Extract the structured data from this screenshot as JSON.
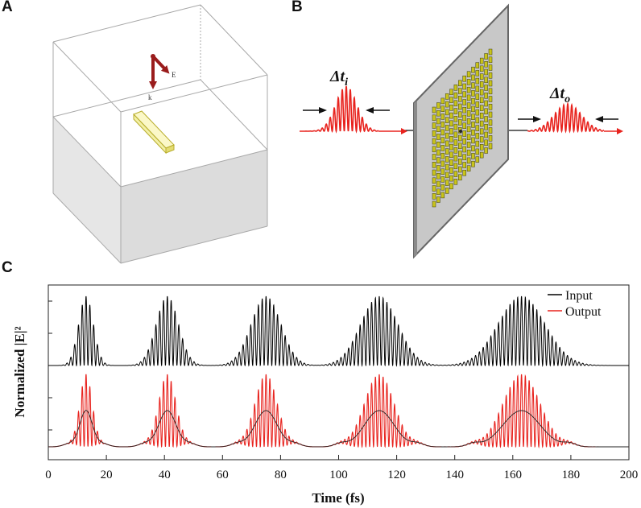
{
  "panels": {
    "a": {
      "letter": "A",
      "field_labels": {
        "e": "E",
        "k": "k"
      },
      "colors": {
        "arrow": "#9a1c1c",
        "rod_fill": "#f3f0a6",
        "rod_stroke": "#b8ad2c",
        "box_stroke": "#a8a8a8",
        "lower_fill": "#e6e6e6"
      }
    },
    "b": {
      "letter": "B",
      "input_label": "Δt",
      "input_sub": "i",
      "output_label": "Δt",
      "output_sub": "o",
      "colors": {
        "pulse": "#e8231e",
        "plate": "#c8c8c8",
        "plate_edge": "#666666",
        "array": "#c9c41a",
        "array_dot": "#3a3a10"
      }
    },
    "c": {
      "letter": "C"
    }
  },
  "chart_data": {
    "type": "line",
    "xlabel": "Time (fs)",
    "ylabel": "Normalized |E|²",
    "xlim": [
      0,
      200
    ],
    "x_ticks": [
      0,
      20,
      40,
      60,
      80,
      100,
      120,
      140,
      160,
      180,
      200
    ],
    "legend": {
      "placement": "top-right",
      "entries": [
        "Input",
        "Output"
      ]
    },
    "series": [
      {
        "name": "Input",
        "color": "#000000",
        "trace": "top",
        "pulses": [
          {
            "center_fs": 13,
            "fwhm_fs": 6
          },
          {
            "center_fs": 41,
            "fwhm_fs": 9
          },
          {
            "center_fs": 75,
            "fwhm_fs": 12
          },
          {
            "center_fs": 114,
            "fwhm_fs": 15
          },
          {
            "center_fs": 163,
            "fwhm_fs": 19
          }
        ]
      },
      {
        "name": "Output",
        "color": "#e8231e",
        "trace": "bottom",
        "pulses": [
          {
            "center_fs": 13,
            "fwhm_fs": 5
          },
          {
            "center_fs": 41,
            "fwhm_fs": 7
          },
          {
            "center_fs": 75,
            "fwhm_fs": 9
          },
          {
            "center_fs": 114,
            "fwhm_fs": 12
          },
          {
            "center_fs": 163,
            "fwhm_fs": 15
          }
        ]
      }
    ]
  }
}
